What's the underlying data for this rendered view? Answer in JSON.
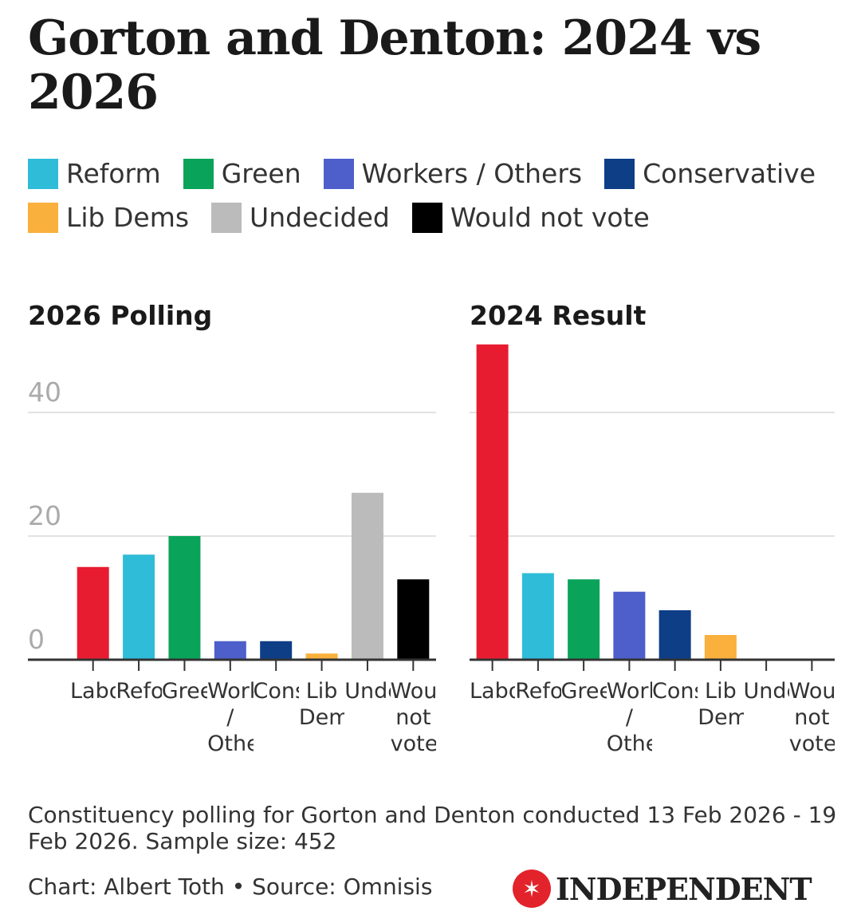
{
  "title": "Gorton and Denton: 2024 vs 2026",
  "legend": [
    {
      "label": "Reform",
      "color": "#2fbcd8"
    },
    {
      "label": "Green",
      "color": "#0aa35a"
    },
    {
      "label": "Workers / Others",
      "color": "#4e5fcb"
    },
    {
      "label": "Conservative",
      "color": "#0d3e86"
    },
    {
      "label": "Lib Dems",
      "color": "#f9b03c"
    },
    {
      "label": "Undecided",
      "color": "#bbbbbb"
    },
    {
      "label": "Would not vote",
      "color": "#000000"
    }
  ],
  "chart_data": [
    {
      "type": "bar",
      "title": "2026 Polling",
      "categories": [
        "Labour",
        "Reform",
        "Green",
        "Workers / Others",
        "Conservative",
        "Lib Dems",
        "Undecided",
        "Would not vote"
      ],
      "values": [
        15,
        17,
        20,
        3,
        3,
        1,
        27,
        13
      ],
      "colors": [
        "#e81c30",
        "#2fbcd8",
        "#0aa35a",
        "#4e5fcb",
        "#0d3e86",
        "#f9b03c",
        "#bbbbbb",
        "#000000"
      ],
      "yticks": [
        0,
        20,
        40
      ],
      "ylim": [
        0,
        52
      ],
      "grid": true
    },
    {
      "type": "bar",
      "title": "2024 Result",
      "categories": [
        "Labour",
        "Reform",
        "Green",
        "Workers / Others",
        "Conservative",
        "Lib Dems",
        "Undecided",
        "Would not vote"
      ],
      "values": [
        51,
        14,
        13,
        11,
        8,
        4,
        0,
        0
      ],
      "colors": [
        "#e81c30",
        "#2fbcd8",
        "#0aa35a",
        "#4e5fcb",
        "#0d3e86",
        "#f9b03c",
        "#bbbbbb",
        "#000000"
      ],
      "yticks": [
        0,
        20,
        40
      ],
      "ylim": [
        0,
        52
      ],
      "grid": true
    }
  ],
  "note": "Constituency polling for Gorton and Denton conducted 13 Feb 2026 - 19 Feb 2026. Sample size: 452",
  "credit": "Chart: Albert Toth • Source: Omnisis",
  "logo": "INDEPENDENT"
}
